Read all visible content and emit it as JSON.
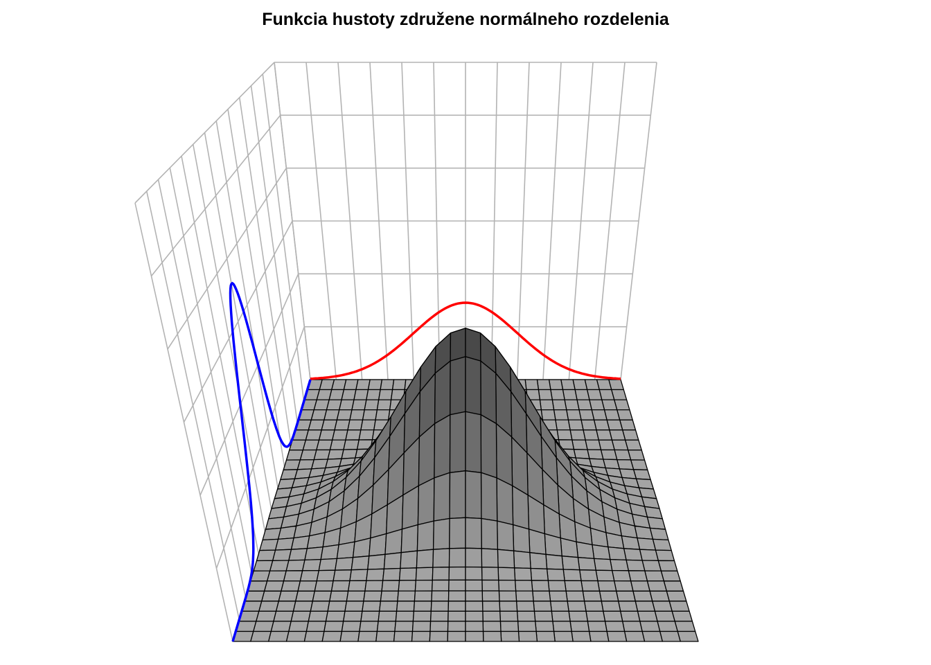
{
  "title": "Funkcia hustoty združene normálneho rozdelenia",
  "chart_data": {
    "type": "surface",
    "title": "Funkcia hustoty združene normálneho rozdelenia",
    "xlabel": "",
    "ylabel": "",
    "zlabel": "",
    "xlim": [
      -3,
      3
    ],
    "ylim": [
      -3,
      3
    ],
    "grid": true,
    "surface": {
      "function": "bivariate-normal-density",
      "mean": [
        0,
        0
      ],
      "sd": [
        1,
        0.5
      ],
      "correlation": 0,
      "grid_n": 26
    },
    "marginals": [
      {
        "axis": "x",
        "color": "#ff0000",
        "shape": "normal-density"
      },
      {
        "axis": "y",
        "color": "#0000ff",
        "shape": "normal-density"
      }
    ],
    "colors": {
      "surface_base": "#a6a6a6",
      "surface_peak": "#444444",
      "surface_edge": "#000000",
      "grid_lines": "#b3b3b3",
      "x_marginal": "#ff0000",
      "y_marginal": "#0000ff"
    }
  }
}
